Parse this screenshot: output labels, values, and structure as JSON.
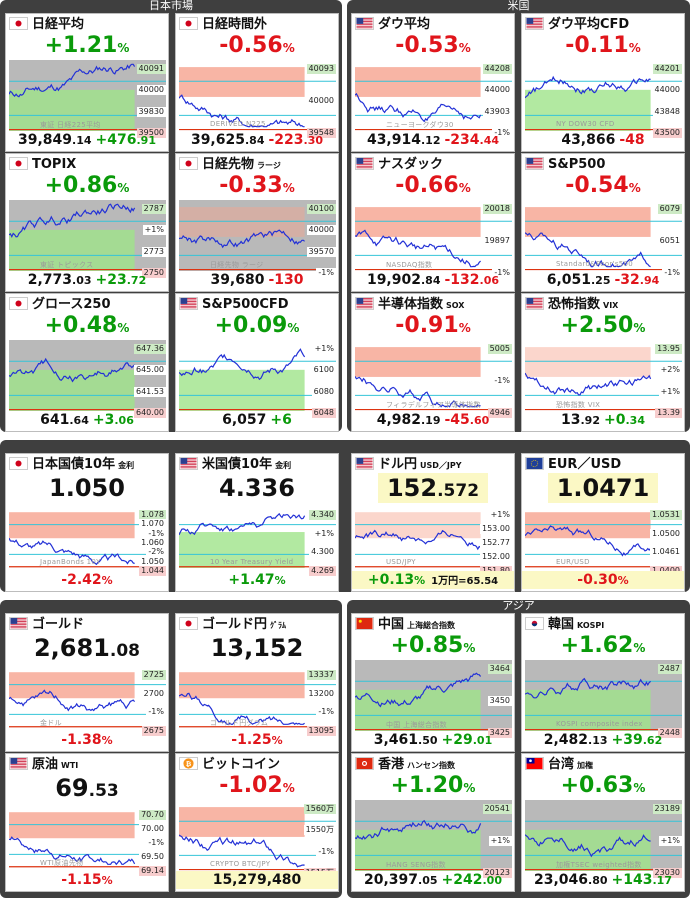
{
  "sections": {
    "japan": "日本市場",
    "us": "米国",
    "asia": "アジア"
  },
  "colors": {
    "up": "#0a9a0a",
    "down": "#e0151b",
    "panel": "#3f3f3f"
  },
  "tiles": {
    "nikkei": {
      "name": "日経平均",
      "pct": "+1.21",
      "unit": "%",
      "price_int": "39,849",
      "price_dec": ".14",
      "chg": "+476",
      "chg_dec": ".91",
      "labels": [
        "40091",
        "40000",
        "39830",
        "39500"
      ],
      "wm": "東証 日経225平均",
      "flag": "japan"
    },
    "nikkei_night": {
      "name": "日経時間外",
      "pct": "-0.56",
      "unit": "%",
      "price_int": "39,625",
      "price_dec": ".84",
      "chg": "-223",
      "chg_dec": ".30",
      "labels": [
        "40093",
        "40000",
        "39548"
      ],
      "wm": "DERIVED N225",
      "flag": "japan"
    },
    "dow": {
      "name": "ダウ平均",
      "pct": "-0.53",
      "unit": "%",
      "price_int": "43,914",
      "price_dec": ".12",
      "chg": "-234",
      "chg_dec": ".44",
      "labels": [
        "44208",
        "44000",
        "43903",
        "-1%"
      ],
      "wm": "ニューヨークダウ30",
      "flag": "us"
    },
    "dow_cfd": {
      "name": "ダウ平均CFD",
      "pct": "-0.11",
      "unit": "%",
      "price_int": "43,866",
      "price_dec": "",
      "chg": "-48",
      "chg_dec": "",
      "labels": [
        "44201",
        "44000",
        "43848",
        "43500"
      ],
      "wm": "NY DOW30 CFD",
      "flag": "us"
    },
    "topix": {
      "name": "TOPIX",
      "pct": "+0.86",
      "unit": "%",
      "price_int": "2,773",
      "price_dec": ".03",
      "chg": "+23",
      "chg_dec": ".72",
      "labels": [
        "2787",
        "+1%",
        "2773",
        "2750"
      ],
      "wm": "東証 トピックス",
      "flag": "japan"
    },
    "nk_fut": {
      "name": "日経先物",
      "sub": "ラージ",
      "pct": "-0.33",
      "unit": "%",
      "price_int": "39,680",
      "price_dec": "",
      "chg": "-130",
      "chg_dec": "",
      "labels": [
        "40100",
        "40000",
        "39570",
        "-1%"
      ],
      "wm": "日経先物 ラージ",
      "flag": "japan"
    },
    "nasdaq": {
      "name": "ナスダック",
      "pct": "-0.66",
      "unit": "%",
      "price_int": "19,902",
      "price_dec": ".84",
      "chg": "-132",
      "chg_dec": ".06",
      "labels": [
        "20018",
        "19897",
        "-1%"
      ],
      "wm": "NASDAQ指数",
      "flag": "us"
    },
    "sp500": {
      "name": "S&P500",
      "pct": "-0.54",
      "unit": "%",
      "price_int": "6,051",
      "price_dec": ".25",
      "chg": "-32",
      "chg_dec": ".94",
      "labels": [
        "6079",
        "6051",
        "-1%"
      ],
      "wm": "Standard&Poor's500",
      "flag": "us"
    },
    "growth": {
      "name": "グロース250",
      "pct": "+0.48",
      "unit": "%",
      "price_int": "641",
      "price_dec": ".64",
      "chg": "+3",
      "chg_dec": ".06",
      "labels": [
        "647.36",
        "645.00",
        "641.53",
        "640.00"
      ],
      "wm": "",
      "flag": "japan"
    },
    "sp500cfd": {
      "name": "S&P500CFD",
      "pct": "+0.09",
      "unit": "%",
      "price_int": "6,057",
      "price_dec": "",
      "chg": "+6",
      "chg_dec": "",
      "labels": [
        "+1%",
        "6100",
        "6080",
        "6048"
      ],
      "wm": "",
      "flag": "us"
    },
    "sox": {
      "name": "半導体指数",
      "sub": "SOX",
      "pct": "-0.91",
      "unit": "%",
      "price_int": "4,982",
      "price_dec": ".19",
      "chg": "-45",
      "chg_dec": ".60",
      "labels": [
        "5005",
        "-1%",
        "4946"
      ],
      "wm": "フィラデルフィア半導体指数",
      "flag": "us"
    },
    "vix": {
      "name": "恐怖指数",
      "sub": "VIX",
      "pct": "+2.50",
      "unit": "%",
      "price_int": "13",
      "price_dec": ".92",
      "chg": "+0",
      "chg_dec": ".34",
      "labels": [
        "13.95",
        "+2%",
        "+1%",
        "13.39"
      ],
      "wm": "恐怖指数 VIX",
      "flag": "us"
    },
    "jgb10": {
      "name": "日本国債10年",
      "sub": "金利",
      "value_int": "1.050",
      "value_dec": "",
      "chg": "-2.42",
      "unit": "%",
      "labels": [
        "1.078",
        "1.070",
        "-1%",
        "1.060",
        "-2%",
        "1.050",
        "1.044"
      ],
      "wm": "JapanBonds 10Y",
      "flag": "japan"
    },
    "ust10": {
      "name": "米国債10年",
      "sub": "金利",
      "value_int": "4.336",
      "value_dec": "",
      "chg": "+1.47",
      "unit": "%",
      "labels": [
        "4.340",
        "+1%",
        "4.300",
        "4.269"
      ],
      "wm": "10 Year Treasury Yield",
      "flag": "us"
    },
    "usdjpy": {
      "name": "ドル円",
      "sub": "USD／JPY",
      "value_int": "152",
      "value_dec": ".572",
      "chg": "+0.13",
      "unit": "%",
      "extra": "1万円=65.54",
      "labels": [
        "+1%",
        "153.00",
        "152.77",
        "152.00",
        "151.80"
      ],
      "wm": "USD/JPY",
      "flag": "us"
    },
    "eurusd": {
      "name": "EUR／USD",
      "value_int": "1.0471",
      "value_dec": "",
      "chg": "-0.30",
      "unit": "%",
      "labels": [
        "1.0531",
        "1.0500",
        "1.0461",
        "1.0400"
      ],
      "wm": "EUR/USD",
      "flag": "eu"
    },
    "gold": {
      "name": "ゴールド",
      "value_int": "2,681",
      "value_dec": ".08",
      "chg": "-1.38",
      "unit": "%",
      "labels": [
        "2725",
        "2700",
        "-1%",
        "2675"
      ],
      "wm": "金ドル",
      "flag": "us"
    },
    "gold_yen": {
      "name": "ゴールド円",
      "sub": "ｸﾞﾗﾑ",
      "value_int": "13,152",
      "value_dec": "",
      "chg": "-1.25",
      "unit": "%",
      "labels": [
        "13337",
        "13200",
        "-1%",
        "13095"
      ],
      "wm": "ゴールド円グラム",
      "flag": "japan"
    },
    "wti": {
      "name": "原油",
      "sub": "WTI",
      "value_int": "69",
      "value_dec": ".53",
      "chg": "-1.15",
      "unit": "%",
      "labels": [
        "70.70",
        "70.00",
        "-1%",
        "69.50",
        "69.14"
      ],
      "wm": "WTI原油先物",
      "flag": "us"
    },
    "btc": {
      "name": "ビットコイン",
      "pct": "-1.02",
      "unit": "%",
      "price": "15,279,480",
      "labels": [
        "1560万",
        "1550万",
        "-1%",
        "1515万"
      ],
      "wm": "CRYPTO BTC/JPY",
      "flag": "btc"
    },
    "china": {
      "name": "中国",
      "sub": "上海総合指数",
      "pct": "+0.85",
      "unit": "%",
      "price_int": "3,461",
      "price_dec": ".50",
      "chg": "+29",
      "chg_dec": ".01",
      "labels": [
        "3464",
        "3450",
        "3425"
      ],
      "wm": "中国 上海総合指数",
      "flag": "china"
    },
    "korea": {
      "name": "韓国",
      "sub": "KOSPI",
      "pct": "+1.62",
      "unit": "%",
      "price_int": "2,482",
      "price_dec": ".13",
      "chg": "+39",
      "chg_dec": ".62",
      "labels": [
        "2487",
        "2448"
      ],
      "wm": "KOSPI composite index",
      "flag": "korea"
    },
    "hk": {
      "name": "香港",
      "sub": "ハンセン指数",
      "pct": "+1.20",
      "unit": "%",
      "price_int": "20,397",
      "price_dec": ".05",
      "chg": "+242",
      "chg_dec": ".00",
      "labels": [
        "20541",
        "+1%",
        "20123"
      ],
      "wm": "HANG SENG指数",
      "flag": "hk"
    },
    "taiwan": {
      "name": "台湾",
      "sub": "加権",
      "pct": "+0.63",
      "unit": "%",
      "price_int": "23,046",
      "price_dec": ".80",
      "chg": "+143",
      "chg_dec": ".17",
      "labels": [
        "23189",
        "+1%",
        "23030"
      ],
      "wm": "加権TSEC weighted指数",
      "flag": "taiwan"
    }
  }
}
